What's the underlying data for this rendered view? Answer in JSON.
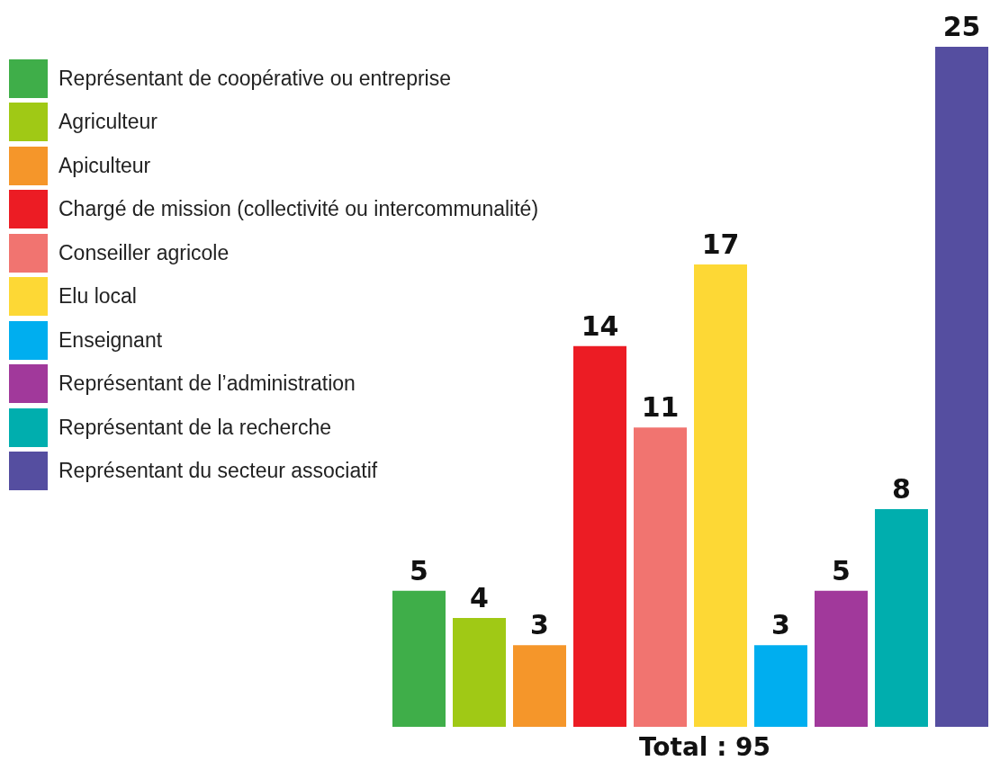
{
  "chart_data": {
    "type": "bar",
    "categories": [
      null
    ],
    "series": [
      {
        "name": "Représentant de coopérative ou entreprise",
        "color": "#3fae49",
        "values": [
          5
        ]
      },
      {
        "name": "Agriculteur",
        "color": "#a0c915",
        "values": [
          4
        ]
      },
      {
        "name": "Apiculteur",
        "color": "#f5962a",
        "values": [
          3
        ]
      },
      {
        "name": "Chargé de mission (collectivité ou intercommunalité)",
        "color": "#ec1c24",
        "values": [
          14
        ]
      },
      {
        "name": "Conseiller agricole",
        "color": "#f17470",
        "values": [
          11
        ]
      },
      {
        "name": "Elu local",
        "color": "#fdd835",
        "values": [
          17
        ]
      },
      {
        "name": "Enseignant",
        "color": "#00aeef",
        "values": [
          3
        ]
      },
      {
        "name": "Représentant de l’administration",
        "color": "#a1399b",
        "values": [
          5
        ]
      },
      {
        "name": "Représentant de la recherche",
        "color": "#00aeae",
        "values": [
          8
        ]
      },
      {
        "name": "Représentant du secteur associatif",
        "color": "#554ea0",
        "values": [
          25
        ]
      }
    ],
    "data_labels": true,
    "tick_labels": false,
    "legend": "top left",
    "annotations": [
      "Total : 95"
    ]
  }
}
